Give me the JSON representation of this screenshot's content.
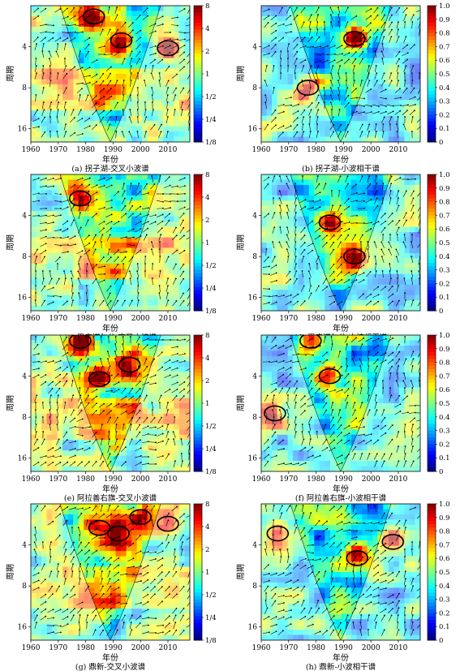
{
  "figure": {
    "colors": {
      "jet": [
        "#00007f",
        "#0000ff",
        "#0080ff",
        "#00ffff",
        "#80ff80",
        "#ffff00",
        "#ff8000",
        "#ff0000",
        "#7f0000"
      ],
      "coi_shade": "#ffffff",
      "arrow": "#000000",
      "contour": "#000000"
    }
  },
  "chart_data": [
    {
      "id": "a",
      "type": "heatmap",
      "kind": "xwt",
      "caption": "(a) 拐子湖-交叉小波谱",
      "xlabel": "年份",
      "ylabel": "周期",
      "xticks": [
        "1960",
        "1970",
        "1980",
        "1990",
        "2000",
        "2010"
      ],
      "yticks": [
        "4",
        "8",
        "16"
      ],
      "colorbar_ticks": [
        "8",
        "4",
        "2",
        "1",
        "1/2",
        "1/4",
        "1/8"
      ],
      "xlim": [
        1960,
        2018
      ],
      "ylim": [
        2,
        20
      ],
      "significant_regions": [
        {
          "year": 1983,
          "period": 2.4
        },
        {
          "year": 1993,
          "period": 3.6
        },
        {
          "year": 2010,
          "period": 4.1
        }
      ]
    },
    {
      "id": "b",
      "type": "heatmap",
      "kind": "wtc",
      "caption": "(b) 拐子湖-小波相干谱",
      "xlabel": "年份",
      "ylabel": "周期",
      "xticks": [
        "1960",
        "1970",
        "1980",
        "1990",
        "2000",
        "2010"
      ],
      "yticks": [
        "4",
        "8",
        "16"
      ],
      "colorbar_ticks": [
        "1.0",
        "0.9",
        "0.8",
        "0.7",
        "0.6",
        "0.5",
        "0.4",
        "0.3",
        "0.2",
        "0.1",
        "0"
      ],
      "xlim": [
        1960,
        2018
      ],
      "ylim": [
        2,
        20
      ],
      "significant_regions": [
        {
          "year": 1994,
          "period": 3.5
        },
        {
          "year": 1977,
          "period": 8
        }
      ]
    },
    {
      "id": "c",
      "type": "heatmap",
      "kind": "xwt",
      "caption": "(c) 巴彦诺尔公-交叉小波谱",
      "xlabel": "年份",
      "ylabel": "周期",
      "xticks": [
        "1960",
        "1970",
        "1980",
        "1990",
        "2000",
        "2010"
      ],
      "yticks": [
        "4",
        "8",
        "16"
      ],
      "colorbar_ticks": [
        "8",
        "4",
        "2",
        "1",
        "1/2",
        "1/4",
        "1/8"
      ],
      "xlim": [
        1960,
        2018
      ],
      "ylim": [
        2,
        20
      ],
      "significant_regions": [
        {
          "year": 1978,
          "period": 3.0
        }
      ]
    },
    {
      "id": "d",
      "type": "heatmap",
      "kind": "wtc",
      "caption": "(d) 巴彦诺尔公-小波相干谱",
      "xlabel": "年份",
      "ylabel": "周期",
      "xticks": [
        "1960",
        "1970",
        "1980",
        "1990",
        "2000",
        "2010"
      ],
      "yticks": [
        "4",
        "8",
        "16"
      ],
      "colorbar_ticks": [
        "1.0",
        "0.9",
        "0.8",
        "0.7",
        "0.6",
        "0.5",
        "0.4",
        "0.3",
        "0.2",
        "0.1",
        "0"
      ],
      "xlim": [
        1960,
        2018
      ],
      "ylim": [
        2,
        20
      ],
      "significant_regions": [
        {
          "year": 1985,
          "period": 4.5
        },
        {
          "year": 1994,
          "period": 8
        }
      ]
    },
    {
      "id": "e",
      "type": "heatmap",
      "kind": "xwt",
      "caption": "(e) 阿拉善右旗-交叉小波谱",
      "xlabel": "年份",
      "ylabel": "周期",
      "xticks": [
        "1960",
        "1970",
        "1980",
        "1990",
        "2000",
        "2010"
      ],
      "yticks": [
        "4",
        "8",
        "16"
      ],
      "colorbar_ticks": [
        "8",
        "4",
        "2",
        "1",
        "1/2",
        "1/4",
        "1/8"
      ],
      "xlim": [
        1960,
        2018
      ],
      "ylim": [
        2,
        20
      ],
      "significant_regions": [
        {
          "year": 1978,
          "period": 2.2
        },
        {
          "year": 1985,
          "period": 4.2
        },
        {
          "year": 1996,
          "period": 3.3
        }
      ]
    },
    {
      "id": "f",
      "type": "heatmap",
      "kind": "wtc",
      "caption": "(f) 阿拉善右旗-小波相干谱",
      "xlabel": "年份",
      "ylabel": "周期",
      "xticks": [
        "1960",
        "1970",
        "1980",
        "1990",
        "2000",
        "2010"
      ],
      "yticks": [
        "4",
        "8",
        "16"
      ],
      "colorbar_ticks": [
        "1.0",
        "0.9",
        "0.8",
        "0.7",
        "0.6",
        "0.5",
        "0.4",
        "0.3",
        "0.2",
        "0.1",
        "0"
      ],
      "xlim": [
        1960,
        2018
      ],
      "ylim": [
        2,
        20
      ],
      "significant_regions": [
        {
          "year": 1978,
          "period": 2.2
        },
        {
          "year": 1985,
          "period": 4.0
        },
        {
          "year": 1965,
          "period": 7.5
        }
      ]
    },
    {
      "id": "g",
      "type": "heatmap",
      "kind": "xwt",
      "caption": "(g) 鼎新-交叉小波谱",
      "xlabel": "年份",
      "ylabel": "周期",
      "xticks": [
        "1960",
        "1970",
        "1980",
        "1990",
        "2000",
        "2010"
      ],
      "yticks": [
        "4",
        "8",
        "16"
      ],
      "colorbar_ticks": [
        "8",
        "4",
        "2",
        "1",
        "1/2",
        "1/4",
        "1/8"
      ],
      "xlim": [
        1960,
        2018
      ],
      "ylim": [
        2,
        20
      ],
      "significant_regions": [
        {
          "year": 1985,
          "period": 3.0
        },
        {
          "year": 1992,
          "period": 3.3
        },
        {
          "year": 2000,
          "period": 2.5
        },
        {
          "year": 2010,
          "period": 2.8
        }
      ]
    },
    {
      "id": "h",
      "type": "heatmap",
      "kind": "wtc",
      "caption": "(h) 鼎新-小波相干谱",
      "xlabel": "年份",
      "ylabel": "周期",
      "xticks": [
        "1960",
        "1970",
        "1980",
        "1990",
        "2000",
        "2010"
      ],
      "yticks": [
        "4",
        "8",
        "16"
      ],
      "colorbar_ticks": [
        "1.0",
        "0.9",
        "0.8",
        "0.7",
        "0.6",
        "0.5",
        "0.4",
        "0.3",
        "0.2",
        "0.1",
        "0"
      ],
      "xlim": [
        1960,
        2018
      ],
      "ylim": [
        2,
        20
      ],
      "significant_regions": [
        {
          "year": 1966,
          "period": 3.3
        },
        {
          "year": 1995,
          "period": 5.0
        },
        {
          "year": 2008,
          "period": 3.8
        }
      ]
    }
  ]
}
